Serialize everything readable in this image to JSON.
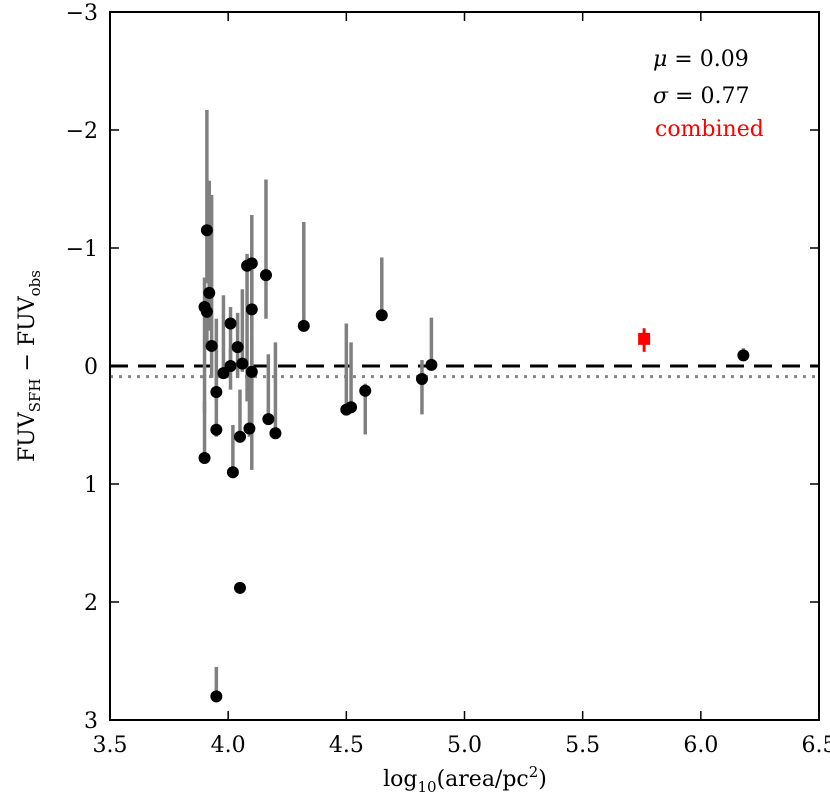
{
  "chart_data": {
    "type": "scatter",
    "xlabel": {
      "base": "log",
      "sub": "10",
      "mid": "(area/pc",
      "sup": "2",
      "end": ")"
    },
    "ylabel": {
      "a": "FUV",
      "a_sub": "SFH",
      "op": " − ",
      "b": "FUV",
      "b_sub": "obs"
    },
    "xlim": [
      3.5,
      6.5
    ],
    "ylim_top": -3,
    "ylim_bottom": 3,
    "x_ticks": [
      3.5,
      4.0,
      4.5,
      5.0,
      5.5,
      6.0,
      6.5
    ],
    "x_tick_labels": [
      "3.5",
      "4.0",
      "4.5",
      "5.0",
      "5.5",
      "6.0",
      "6.5"
    ],
    "y_ticks": [
      -3,
      -2,
      -1,
      0,
      1,
      2,
      3
    ],
    "y_tick_labels": [
      "−3",
      "−2",
      "−1",
      "0",
      "1",
      "2",
      "3"
    ],
    "reference_lines": [
      {
        "name": "zero",
        "y": 0,
        "style": "dashed",
        "color": "#000000"
      },
      {
        "name": "mean",
        "y": 0.09,
        "style": "dotted",
        "color": "#888888"
      }
    ],
    "annotations": {
      "mu": {
        "symbol": "μ",
        "text": " = 0.09"
      },
      "sigma": {
        "symbol": "σ",
        "text": " = 0.77"
      },
      "combined": "combined"
    },
    "colors": {
      "points": "#000000",
      "errorbars": "#808080",
      "combined": "#ff0000",
      "zero_line": "#000000",
      "mean_line": "#888888"
    },
    "series": [
      {
        "name": "regions",
        "points": [
          {
            "x": 3.9,
            "y": -0.5,
            "err_lo": -0.75,
            "err_hi": 0.4
          },
          {
            "x": 3.91,
            "y": -1.15,
            "err_lo": -2.17,
            "err_hi": -0.7
          },
          {
            "x": 3.91,
            "y": -0.46,
            "err_lo": -0.6,
            "err_hi": -0.2
          },
          {
            "x": 3.92,
            "y": -0.62,
            "err_lo": -1.57,
            "err_hi": -0.3
          },
          {
            "x": 3.93,
            "y": -0.17,
            "err_lo": -1.45,
            "err_hi": 0.1
          },
          {
            "x": 3.9,
            "y": 0.78,
            "err_lo": 0.3,
            "err_hi": 0.8
          },
          {
            "x": 3.95,
            "y": 0.22,
            "err_lo": -0.4,
            "err_hi": 0.3
          },
          {
            "x": 3.95,
            "y": 0.54,
            "err_lo": 0.1,
            "err_hi": 0.6
          },
          {
            "x": 3.95,
            "y": 2.8,
            "err_lo": 2.55,
            "err_hi": 2.85
          },
          {
            "x": 3.98,
            "y": 0.06,
            "err_lo": -0.6,
            "err_hi": 0.1
          },
          {
            "x": 4.01,
            "y": -0.36,
            "err_lo": -0.5,
            "err_hi": 0.2
          },
          {
            "x": 4.01,
            "y": 0.0,
            "err_lo": -0.15,
            "err_hi": 0.05
          },
          {
            "x": 4.02,
            "y": 0.9,
            "err_lo": 0.5,
            "err_hi": 0.95
          },
          {
            "x": 4.04,
            "y": -0.16,
            "err_lo": -0.45,
            "err_hi": 0.1
          },
          {
            "x": 4.05,
            "y": 1.88,
            "err_lo": 1.85,
            "err_hi": 1.9
          },
          {
            "x": 4.05,
            "y": 0.6,
            "err_lo": 0.2,
            "err_hi": 0.65
          },
          {
            "x": 4.06,
            "y": -0.02,
            "err_lo": -0.65,
            "err_hi": 0.05
          },
          {
            "x": 4.08,
            "y": -0.85,
            "err_lo": -0.95,
            "err_hi": 0.3
          },
          {
            "x": 4.09,
            "y": 0.53,
            "err_lo": 0.0,
            "err_hi": 0.6
          },
          {
            "x": 4.1,
            "y": -0.87,
            "err_lo": -1.28,
            "err_hi": 0.2
          },
          {
            "x": 4.1,
            "y": -0.48,
            "err_lo": -0.8,
            "err_hi": -0.3
          },
          {
            "x": 4.1,
            "y": 0.05,
            "err_lo": -0.25,
            "err_hi": 0.88
          },
          {
            "x": 4.16,
            "y": -0.77,
            "err_lo": -1.58,
            "err_hi": -0.4
          },
          {
            "x": 4.17,
            "y": 0.45,
            "err_lo": -0.1,
            "err_hi": 0.5
          },
          {
            "x": 4.2,
            "y": 0.57,
            "err_lo": -0.2,
            "err_hi": 0.6
          },
          {
            "x": 4.32,
            "y": -0.34,
            "err_lo": -1.22,
            "err_hi": -0.3
          },
          {
            "x": 4.5,
            "y": 0.37,
            "err_lo": -0.36,
            "err_hi": 0.4
          },
          {
            "x": 4.52,
            "y": 0.35,
            "err_lo": -0.2,
            "err_hi": 0.4
          },
          {
            "x": 4.58,
            "y": 0.21,
            "err_lo": 0.15,
            "err_hi": 0.58
          },
          {
            "x": 4.65,
            "y": -0.43,
            "err_lo": -0.92,
            "err_hi": -0.4
          },
          {
            "x": 4.82,
            "y": 0.11,
            "err_lo": -0.05,
            "err_hi": 0.41
          },
          {
            "x": 4.86,
            "y": -0.01,
            "err_lo": -0.41,
            "err_hi": 0.02
          },
          {
            "x": 6.18,
            "y": -0.09,
            "err_lo": -0.15,
            "err_hi": -0.05
          }
        ]
      },
      {
        "name": "combined",
        "points": [
          {
            "x": 5.76,
            "y": -0.23,
            "err_lo": -0.32,
            "err_hi": -0.12
          }
        ]
      }
    ]
  }
}
